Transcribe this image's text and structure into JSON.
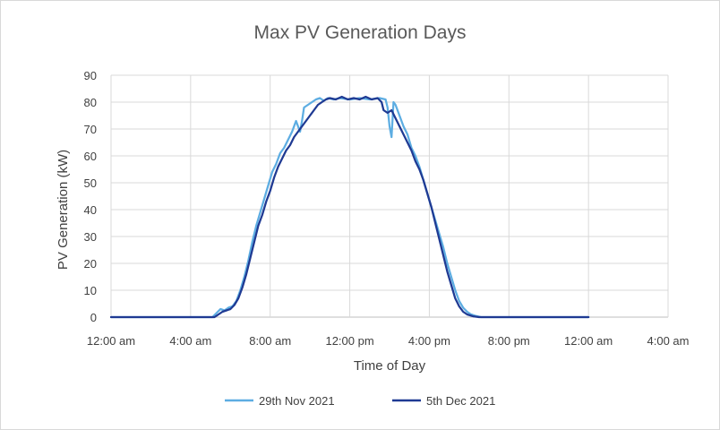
{
  "chart_data": {
    "type": "line",
    "title": "Max PV Generation Days",
    "xlabel": "Time of Day",
    "ylabel": "PV Generation (kW)",
    "x_unit": "hours",
    "xlim": [
      0,
      28
    ],
    "ylim": [
      0,
      90
    ],
    "x_ticks": [
      {
        "value": 0,
        "label": "12:00 am"
      },
      {
        "value": 4,
        "label": "4:00 am"
      },
      {
        "value": 8,
        "label": "8:00 am"
      },
      {
        "value": 12,
        "label": "12:00 pm"
      },
      {
        "value": 16,
        "label": "4:00 pm"
      },
      {
        "value": 20,
        "label": "8:00 pm"
      },
      {
        "value": 24,
        "label": "12:00 am"
      },
      {
        "value": 28,
        "label": "4:00 am"
      }
    ],
    "y_ticks": [
      0,
      10,
      20,
      30,
      40,
      50,
      60,
      70,
      80,
      90
    ],
    "grid": true,
    "legend_position": "bottom",
    "series": [
      {
        "name": "29th Nov 2021",
        "color": "#5DADE2",
        "points": [
          [
            0,
            0
          ],
          [
            5.1,
            0
          ],
          [
            5.3,
            1.5
          ],
          [
            5.5,
            3
          ],
          [
            5.7,
            2.5
          ],
          [
            5.9,
            3.5
          ],
          [
            6.1,
            4
          ],
          [
            6.3,
            6
          ],
          [
            6.5,
            10
          ],
          [
            6.7,
            15
          ],
          [
            6.9,
            21
          ],
          [
            7.1,
            28
          ],
          [
            7.3,
            34
          ],
          [
            7.5,
            39
          ],
          [
            7.7,
            44
          ],
          [
            7.9,
            49
          ],
          [
            8.1,
            54
          ],
          [
            8.3,
            57
          ],
          [
            8.5,
            61
          ],
          [
            8.7,
            63
          ],
          [
            8.9,
            66
          ],
          [
            9.1,
            69
          ],
          [
            9.3,
            73
          ],
          [
            9.4,
            71
          ],
          [
            9.5,
            69
          ],
          [
            9.6,
            73
          ],
          [
            9.7,
            78
          ],
          [
            9.9,
            79
          ],
          [
            10.1,
            80
          ],
          [
            10.3,
            81
          ],
          [
            10.5,
            81.5
          ],
          [
            10.7,
            80.5
          ],
          [
            10.9,
            81.5
          ],
          [
            11.2,
            81
          ],
          [
            11.5,
            81.5
          ],
          [
            12,
            81
          ],
          [
            12.5,
            81.5
          ],
          [
            13,
            81
          ],
          [
            13.5,
            81.5
          ],
          [
            13.8,
            81
          ],
          [
            13.9,
            78
          ],
          [
            14.0,
            71
          ],
          [
            14.1,
            67
          ],
          [
            14.2,
            80
          ],
          [
            14.3,
            79
          ],
          [
            14.5,
            75
          ],
          [
            14.7,
            71
          ],
          [
            14.9,
            68
          ],
          [
            15.1,
            63
          ],
          [
            15.3,
            60
          ],
          [
            15.5,
            56
          ],
          [
            15.7,
            51
          ],
          [
            15.9,
            46
          ],
          [
            16.1,
            41
          ],
          [
            16.3,
            36
          ],
          [
            16.5,
            31
          ],
          [
            16.7,
            26
          ],
          [
            16.9,
            20
          ],
          [
            17.1,
            15
          ],
          [
            17.3,
            10
          ],
          [
            17.5,
            6
          ],
          [
            17.7,
            3.5
          ],
          [
            17.9,
            2
          ],
          [
            18.1,
            1
          ],
          [
            18.3,
            0.5
          ],
          [
            18.6,
            0
          ],
          [
            24,
            0
          ]
        ]
      },
      {
        "name": "5th Dec 2021",
        "color": "#1F3A93",
        "points": [
          [
            0,
            0
          ],
          [
            5.2,
            0
          ],
          [
            5.4,
            1
          ],
          [
            5.6,
            2
          ],
          [
            5.8,
            2.5
          ],
          [
            6.0,
            3
          ],
          [
            6.2,
            4.5
          ],
          [
            6.4,
            7
          ],
          [
            6.6,
            11
          ],
          [
            6.8,
            16
          ],
          [
            7.0,
            22
          ],
          [
            7.2,
            28
          ],
          [
            7.4,
            34
          ],
          [
            7.6,
            38
          ],
          [
            7.8,
            43
          ],
          [
            8.0,
            47
          ],
          [
            8.2,
            52
          ],
          [
            8.4,
            56
          ],
          [
            8.6,
            59
          ],
          [
            8.8,
            62
          ],
          [
            9.0,
            64
          ],
          [
            9.2,
            67
          ],
          [
            9.4,
            69
          ],
          [
            9.6,
            71
          ],
          [
            9.8,
            73
          ],
          [
            10.0,
            75
          ],
          [
            10.2,
            77
          ],
          [
            10.4,
            79
          ],
          [
            10.6,
            80
          ],
          [
            10.8,
            81
          ],
          [
            11.0,
            81.5
          ],
          [
            11.3,
            81
          ],
          [
            11.6,
            82
          ],
          [
            11.9,
            81
          ],
          [
            12.2,
            81.5
          ],
          [
            12.5,
            81
          ],
          [
            12.8,
            82
          ],
          [
            13.1,
            81
          ],
          [
            13.4,
            81.5
          ],
          [
            13.6,
            80
          ],
          [
            13.7,
            77
          ],
          [
            13.9,
            76
          ],
          [
            14.1,
            77
          ],
          [
            14.3,
            74
          ],
          [
            14.5,
            71
          ],
          [
            14.7,
            68
          ],
          [
            14.9,
            65
          ],
          [
            15.1,
            62
          ],
          [
            15.3,
            58
          ],
          [
            15.5,
            55
          ],
          [
            15.7,
            51
          ],
          [
            15.9,
            46
          ],
          [
            16.1,
            41
          ],
          [
            16.3,
            35
          ],
          [
            16.5,
            29
          ],
          [
            16.7,
            23
          ],
          [
            16.9,
            17
          ],
          [
            17.1,
            12
          ],
          [
            17.3,
            7
          ],
          [
            17.5,
            4
          ],
          [
            17.7,
            2
          ],
          [
            17.9,
            1
          ],
          [
            18.2,
            0.3
          ],
          [
            18.5,
            0
          ],
          [
            24,
            0
          ]
        ]
      }
    ]
  }
}
